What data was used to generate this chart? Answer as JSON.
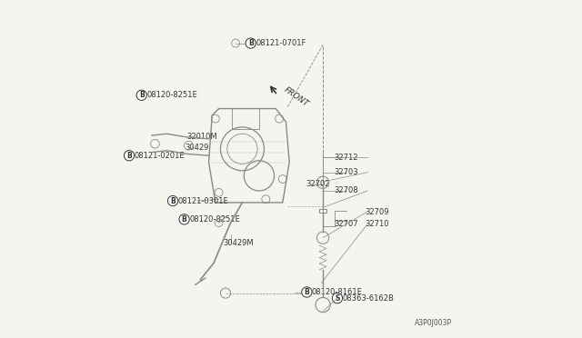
{
  "bg_color": "#f5f5f0",
  "line_color": "#888888",
  "text_color": "#555555",
  "dark_text": "#333333",
  "title": "",
  "diagram_id": "A3P0J003P",
  "labels": {
    "08120-8161E": [
      0.595,
      0.135,
      "B",
      true
    ],
    "30429M_top": [
      0.328,
      0.28,
      "",
      false
    ],
    "08120-8251E_top": [
      0.27,
      0.35,
      "B",
      true
    ],
    "08121-0301E": [
      0.21,
      0.405,
      "B",
      true
    ],
    "08121-0201E": [
      0.04,
      0.545,
      "B",
      true
    ],
    "30429": [
      0.215,
      0.565,
      "",
      false
    ],
    "32010M": [
      0.225,
      0.595,
      "",
      false
    ],
    "08120-8251E_bot": [
      0.09,
      0.72,
      "B",
      true
    ],
    "08121-0701F": [
      0.41,
      0.875,
      "B",
      true
    ],
    "08363-6162B": [
      0.67,
      0.12,
      "S",
      true
    ],
    "32702": [
      0.565,
      0.455,
      "",
      false
    ],
    "32707": [
      0.645,
      0.34,
      "",
      false
    ],
    "32710": [
      0.735,
      0.34,
      "",
      false
    ],
    "32709": [
      0.735,
      0.375,
      "",
      false
    ],
    "32708": [
      0.645,
      0.435,
      "",
      false
    ],
    "32703": [
      0.645,
      0.49,
      "",
      false
    ],
    "32712": [
      0.645,
      0.535,
      "",
      false
    ]
  },
  "front_arrow": [
    0.47,
    0.72,
    0.44,
    0.755
  ],
  "front_text": [
    0.505,
    0.71
  ]
}
